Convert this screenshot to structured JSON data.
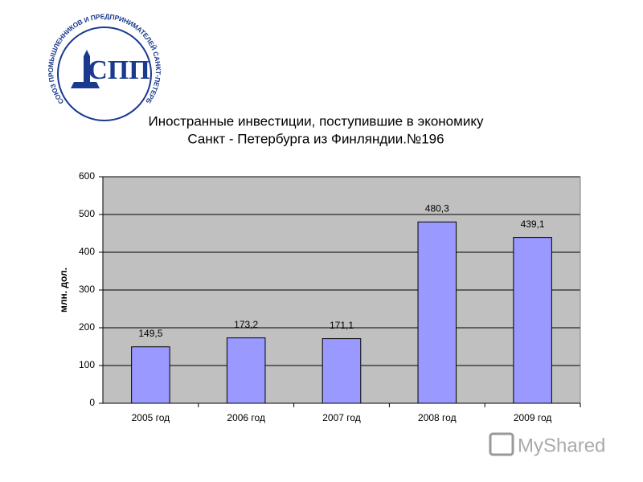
{
  "logo": {
    "ring_text": "СОЮЗ ПРОМЫШЛЕННИКОВ И ПРЕДПРИНИМАТЕЛЕЙ САНКТ-ПЕТЕРБУРГА",
    "letters": "СПП"
  },
  "watermark": "MyShared",
  "chart_data": {
    "type": "bar",
    "title": [
      "Иностранные инвестиции, поступившие в экономику",
      "Санкт - Петербурга из Финляндии.№196"
    ],
    "y_label": "млн. дол.",
    "categories": [
      "2005 год",
      "2006 год",
      "2007 год",
      "2008 год",
      "2009 год"
    ],
    "values": [
      149.5,
      173.2,
      171.1,
      480.3,
      439.1
    ],
    "value_labels": [
      "149,5",
      "173,2",
      "171,1",
      "480,3",
      "439,1"
    ],
    "color": "#9999ff",
    "ylim": [
      0,
      600
    ],
    "yticks": [
      0,
      100,
      200,
      300,
      400,
      500,
      600
    ],
    "grid": true
  }
}
